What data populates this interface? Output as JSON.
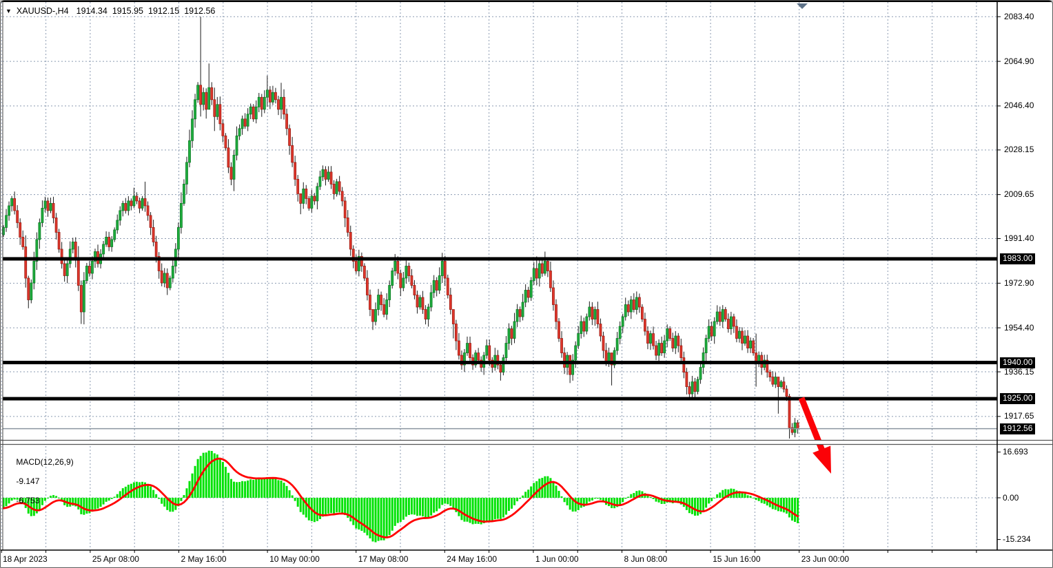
{
  "window": {
    "collapse_icon": "▼",
    "symbol_period": "XAUUSD-,H4"
  },
  "colors": {
    "bull_fill": "#1fae3e",
    "bull_edge": "#0b7a23",
    "bear_fill": "#e0372c",
    "bear_edge": "#9c1d14",
    "wick": "#1c1c1c",
    "grid": "#8a9ab0",
    "level_line": "#000000",
    "current_price_line": "#8a959f",
    "macd_hist": "#00e205",
    "macd_signal": "#ff0000",
    "arrow": "#fb0207",
    "axis_text": "#000000",
    "highlight_bg": "#000000",
    "highlight_text": "#ffffff",
    "shift_marker": "#5f7389",
    "frame": "#000000"
  },
  "chart_data": {
    "type": "candlestick",
    "title": "XAUUSD-,H4",
    "symbol": "XAUUSD-",
    "timeframe": "H4",
    "current_ohlc": {
      "open": "1914.34",
      "high": "1915.95",
      "low": "1912.15",
      "close": "1912.56"
    },
    "price_axis": {
      "visible_range": [
        1906,
        2090
      ],
      "ticks": [
        "2083.40",
        "2064.90",
        "2046.40",
        "2028.15",
        "2009.65",
        "1991.40",
        "1972.90",
        "1954.40",
        "1936.15",
        "1917.65"
      ],
      "highlighted_levels": [
        "1983.00",
        "1940.00",
        "1925.00"
      ],
      "current_price_label": "1912.56"
    },
    "time_axis": {
      "labels": [
        "18 Apr 2023",
        "25 Apr 08:00",
        "2 May 16:00",
        "10 May 00:00",
        "17 May 08:00",
        "24 May 16:00",
        "1 Jun 00:00",
        "8 Jun 08:00",
        "15 Jun 16:00",
        "23 Jun 00:00"
      ]
    },
    "series": {
      "first_open": 1993,
      "closes": [
        1996,
        2001,
        2005,
        2008,
        2003,
        1998,
        1992,
        1988,
        1975,
        1966,
        1973,
        1982,
        1991,
        1998,
        2004,
        2007,
        2003,
        2006,
        2000,
        1994,
        1987,
        1981,
        1976,
        1981,
        1987,
        1990,
        1983,
        1972,
        1961,
        1974,
        1980,
        1977,
        1982,
        1986,
        1981,
        1985,
        1989,
        1992,
        1988,
        1991,
        1995,
        1999,
        2003,
        2006,
        2003,
        2007,
        2005,
        2009,
        2007,
        2004,
        2008,
        2005,
        2001,
        1996,
        1990,
        1984,
        1978,
        1973,
        1977,
        1971,
        1975,
        1980,
        1987,
        1996,
        2006,
        2014,
        2023,
        2032,
        2041,
        2049,
        2055,
        2047,
        2052,
        2045,
        2054,
        2049,
        2042,
        2047,
        2039,
        2034,
        2029,
        2021,
        2016,
        2026,
        2034,
        2037,
        2041,
        2038,
        2043,
        2046,
        2041,
        2046,
        2050,
        2045,
        2050,
        2053,
        2048,
        2052,
        2049,
        2045,
        2050,
        2043,
        2037,
        2030,
        2023,
        2016,
        2010,
        2006,
        2012,
        2008,
        2004,
        2009,
        2007,
        2013,
        2017,
        2020,
        2016,
        2019,
        2014,
        2010,
        2015,
        2011,
        2007,
        2000,
        1994,
        1987,
        1982,
        1978,
        1984,
        1980,
        1975,
        1968,
        1962,
        1957,
        1962,
        1968,
        1964,
        1960,
        1966,
        1972,
        1978,
        1982,
        1977,
        1971,
        1975,
        1980,
        1976,
        1972,
        1968,
        1963,
        1967,
        1962,
        1958,
        1963,
        1969,
        1974,
        1970,
        1976,
        1982,
        1975,
        1968,
        1962,
        1956,
        1949,
        1943,
        1939,
        1944,
        1948,
        1942,
        1939,
        1944,
        1941,
        1938,
        1943,
        1947,
        1941,
        1938,
        1943,
        1939,
        1936,
        1942,
        1948,
        1954,
        1950,
        1957,
        1962,
        1959,
        1965,
        1970,
        1967,
        1974,
        1979,
        1975,
        1981,
        1977,
        1982,
        1978,
        1971,
        1964,
        1957,
        1950,
        1944,
        1938,
        1943,
        1935,
        1941,
        1947,
        1952,
        1957,
        1953,
        1959,
        1963,
        1958,
        1962,
        1956,
        1951,
        1945,
        1940,
        1944,
        1939,
        1945,
        1950,
        1955,
        1959,
        1964,
        1961,
        1966,
        1962,
        1967,
        1963,
        1958,
        1953,
        1948,
        1952,
        1947,
        1943,
        1948,
        1944,
        1949,
        1954,
        1950,
        1946,
        1951,
        1947,
        1942,
        1936,
        1930,
        1927,
        1932,
        1928,
        1933,
        1938,
        1944,
        1950,
        1955,
        1951,
        1957,
        1961,
        1957,
        1962,
        1958,
        1954,
        1959,
        1955,
        1950,
        1953,
        1948,
        1951,
        1946,
        1949,
        1944,
        1940,
        1943,
        1938,
        1941,
        1936,
        1934,
        1931,
        1934,
        1930,
        1932,
        1929,
        1926,
        1913,
        1911,
        1915,
        1912.56
      ],
      "wick_overrides": {
        "9": [
          1976,
          1962.5
        ],
        "28": [
          1974,
          1956
        ],
        "47": [
          2012.5,
          2004
        ],
        "51": [
          2015,
          2002.5
        ],
        "65": [
          2016,
          2005
        ],
        "71": [
          2083.4,
          2042
        ],
        "74": [
          2064,
          2046
        ],
        "76": [
          2054,
          2036
        ],
        "95": [
          2059,
          2046
        ],
        "100": [
          2056,
          2041
        ],
        "107": [
          2010,
          2001.5
        ],
        "133": [
          1962,
          1953.5
        ],
        "141": [
          1985,
          1976
        ],
        "158": [
          1985.5,
          1973
        ],
        "162": [
          1960,
          1950
        ],
        "179": [
          1940,
          1932.5
        ],
        "192": [
          1984,
          1972
        ],
        "195": [
          1986,
          1976
        ],
        "204": [
          1940,
          1931.5
        ],
        "219": [
          1943,
          1930.5
        ],
        "247": [
          1932,
          1925.3
        ],
        "271": [
          1952,
          1930
        ],
        "279": [
          1934,
          1918.8
        ],
        "283": [
          1927,
          1908.5
        ],
        "286": [
          1916.2,
          1910.5
        ]
      }
    },
    "overlays": {
      "horizontal_black_lines": [
        1983.0,
        1940.0,
        1925.0
      ],
      "current_price_line": 1912.56,
      "down_arrow": {
        "from_price": 1925.0,
        "direction": "down-right"
      }
    },
    "macd": {
      "label": "MACD(12,26,9)",
      "main_value": "-9.147",
      "signal_value": "-6.753",
      "axis_ticks": [
        "16.693",
        "0.00",
        "-15.234"
      ]
    }
  }
}
